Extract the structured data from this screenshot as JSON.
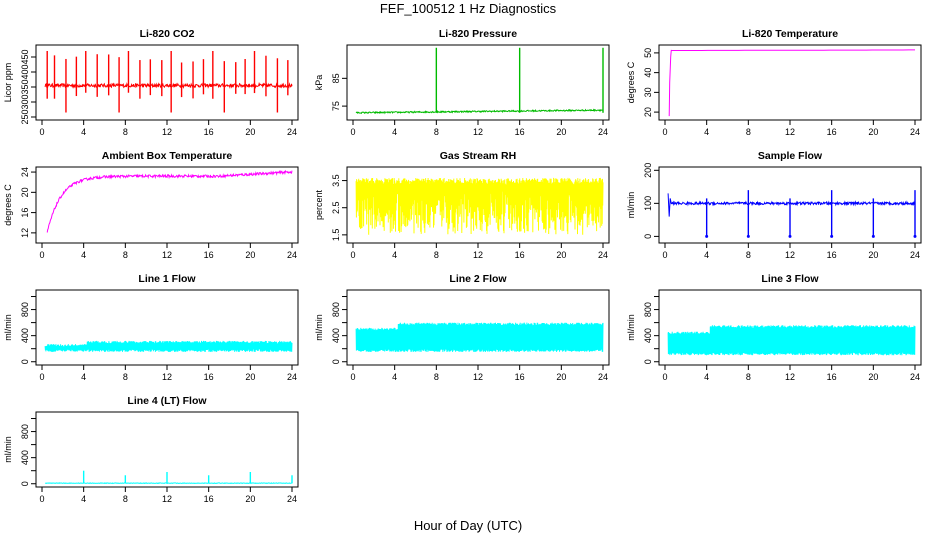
{
  "title": "FEF_100512  1 Hz Diagnostics",
  "xlabel": "Hour of Day (UTC)",
  "chart_data": [
    {
      "type": "line",
      "title": "Li-820 CO2",
      "ylabel": "Licor ppm",
      "color": "#ff0000",
      "xlim": [
        0,
        24
      ],
      "xticks": [
        0,
        4,
        8,
        12,
        16,
        20,
        24
      ],
      "ylim": [
        240,
        490
      ],
      "yticks": [
        250,
        300,
        350,
        400,
        450
      ],
      "ytick_labels": [
        "250",
        "300",
        "350",
        "400",
        "450"
      ],
      "baseline": 355,
      "spikes": [
        0.5,
        1.2,
        2.3,
        3.3,
        4.2,
        5.3,
        6.4,
        7.4,
        8.3,
        9.4,
        10.4,
        11.5,
        12.4,
        13.4,
        14.5,
        15.5,
        16.4,
        17.5,
        18.6,
        19.5,
        20.4,
        21.5,
        22.6,
        23.6
      ],
      "x_end": 24,
      "x_start": 0.3
    },
    {
      "type": "line",
      "title": "Li-820 Pressure",
      "ylabel": "kPa",
      "color": "#00bb00",
      "xlim": [
        0,
        24
      ],
      "xticks": [
        0,
        4,
        8,
        12,
        16,
        20,
        24
      ],
      "ylim": [
        70,
        97
      ],
      "yticks": [
        75,
        85
      ],
      "ytick_labels": [
        "75",
        "85"
      ],
      "baseline": 72.6,
      "spikes": [
        8.0,
        16.0,
        24.0
      ],
      "x_end": 24,
      "x_start": 0.3
    },
    {
      "type": "line",
      "title": "Li-820 Temperature",
      "ylabel": "degrees C",
      "color": "#ff00ff",
      "xlim": [
        0,
        24
      ],
      "xticks": [
        0,
        4,
        8,
        12,
        16,
        20,
        24
      ],
      "ylim": [
        16,
        54
      ],
      "yticks": [
        20,
        30,
        40,
        50
      ],
      "ytick_labels": [
        "20",
        "30",
        "40",
        "50"
      ],
      "baseline": 51.5,
      "x_end": 24,
      "x_start": 0.4
    },
    {
      "type": "line",
      "title": "Ambient Box Temperature",
      "ylabel": "degrees C",
      "color": "#ff00ff",
      "xlim": [
        0,
        24
      ],
      "xticks": [
        0,
        4,
        8,
        12,
        16,
        20,
        24
      ],
      "ylim": [
        10,
        25
      ],
      "yticks": [
        12,
        16,
        20,
        24
      ],
      "ytick_labels": [
        "12",
        "16",
        "20",
        "24"
      ],
      "start": 12,
      "plateau": 23.2,
      "end": 24,
      "x_end": 24,
      "x_start": 0.5
    },
    {
      "type": "line",
      "title": "Gas Stream RH",
      "ylabel": "percent",
      "color": "#ffff00",
      "xlim": [
        0,
        24
      ],
      "xticks": [
        0,
        4,
        8,
        12,
        16,
        20,
        24
      ],
      "ylim": [
        1.2,
        4.0
      ],
      "yticks": [
        1.5,
        2.5,
        3.5
      ],
      "ytick_labels": [
        "1.5",
        "2.5",
        "3.5"
      ],
      "high": 3.45,
      "low": 1.5,
      "x_end": 24,
      "x_start": 0.3
    },
    {
      "type": "line",
      "title": "Sample Flow",
      "ylabel": "ml/min",
      "color": "#0000ff",
      "xlim": [
        0,
        24
      ],
      "xticks": [
        0,
        4,
        8,
        12,
        16,
        20,
        24
      ],
      "ylim": [
        -20,
        210
      ],
      "yticks": [
        0,
        100,
        200
      ],
      "ytick_labels": [
        "0",
        "100",
        "200"
      ],
      "baseline": 100,
      "spikes": [
        4,
        8,
        12,
        16,
        20,
        24
      ],
      "x_end": 24,
      "x_start": 0.3
    },
    {
      "type": "line",
      "title": "Line 1 Flow",
      "ylabel": "ml/min",
      "color": "#00ffff",
      "xlim": [
        0,
        24
      ],
      "xticks": [
        0,
        4,
        8,
        12,
        16,
        20,
        24
      ],
      "ylim": [
        -50,
        1100
      ],
      "yticks": [
        0,
        200,
        400,
        600,
        800,
        1000
      ],
      "ytick_labels": [
        "0",
        "400",
        "800"
      ],
      "high_before": 250,
      "high_after": 300,
      "low": 150,
      "x_end": 24,
      "x_start": 0.3
    },
    {
      "type": "line",
      "title": "Line 2 Flow",
      "ylabel": "ml/min",
      "color": "#00ffff",
      "xlim": [
        0,
        24
      ],
      "xticks": [
        0,
        4,
        8,
        12,
        16,
        20,
        24
      ],
      "ylim": [
        -50,
        1100
      ],
      "yticks": [
        0,
        200,
        400,
        600,
        800,
        1000
      ],
      "ytick_labels": [
        "0",
        "400",
        "800"
      ],
      "high_before": 500,
      "high_after": 580,
      "low": 150,
      "x_end": 24,
      "x_start": 0.3
    },
    {
      "type": "line",
      "title": "Line 3 Flow",
      "ylabel": "ml/min",
      "color": "#00ffff",
      "xlim": [
        0,
        24
      ],
      "xticks": [
        0,
        4,
        8,
        12,
        16,
        20,
        24
      ],
      "ylim": [
        -50,
        1100
      ],
      "yticks": [
        0,
        200,
        400,
        600,
        800,
        1000
      ],
      "ytick_labels": [
        "0",
        "400",
        "800"
      ],
      "high_before": 440,
      "high_after": 540,
      "low": 100,
      "x_end": 24,
      "x_start": 0.3
    },
    {
      "type": "line",
      "title": "Line 4 (LT) Flow",
      "ylabel": "ml/min",
      "color": "#00ffff",
      "xlim": [
        0,
        24
      ],
      "xticks": [
        0,
        4,
        8,
        12,
        16,
        20,
        24
      ],
      "ylim": [
        -50,
        1100
      ],
      "yticks": [
        0,
        200,
        400,
        600,
        800,
        1000
      ],
      "ytick_labels": [
        "0",
        "400",
        "800"
      ],
      "baseline": 5,
      "spikes": [
        4,
        8,
        12,
        16,
        20,
        24
      ],
      "spike_heights": [
        200,
        130,
        180,
        130,
        180,
        130
      ],
      "x_end": 24,
      "x_start": 0.3
    }
  ]
}
